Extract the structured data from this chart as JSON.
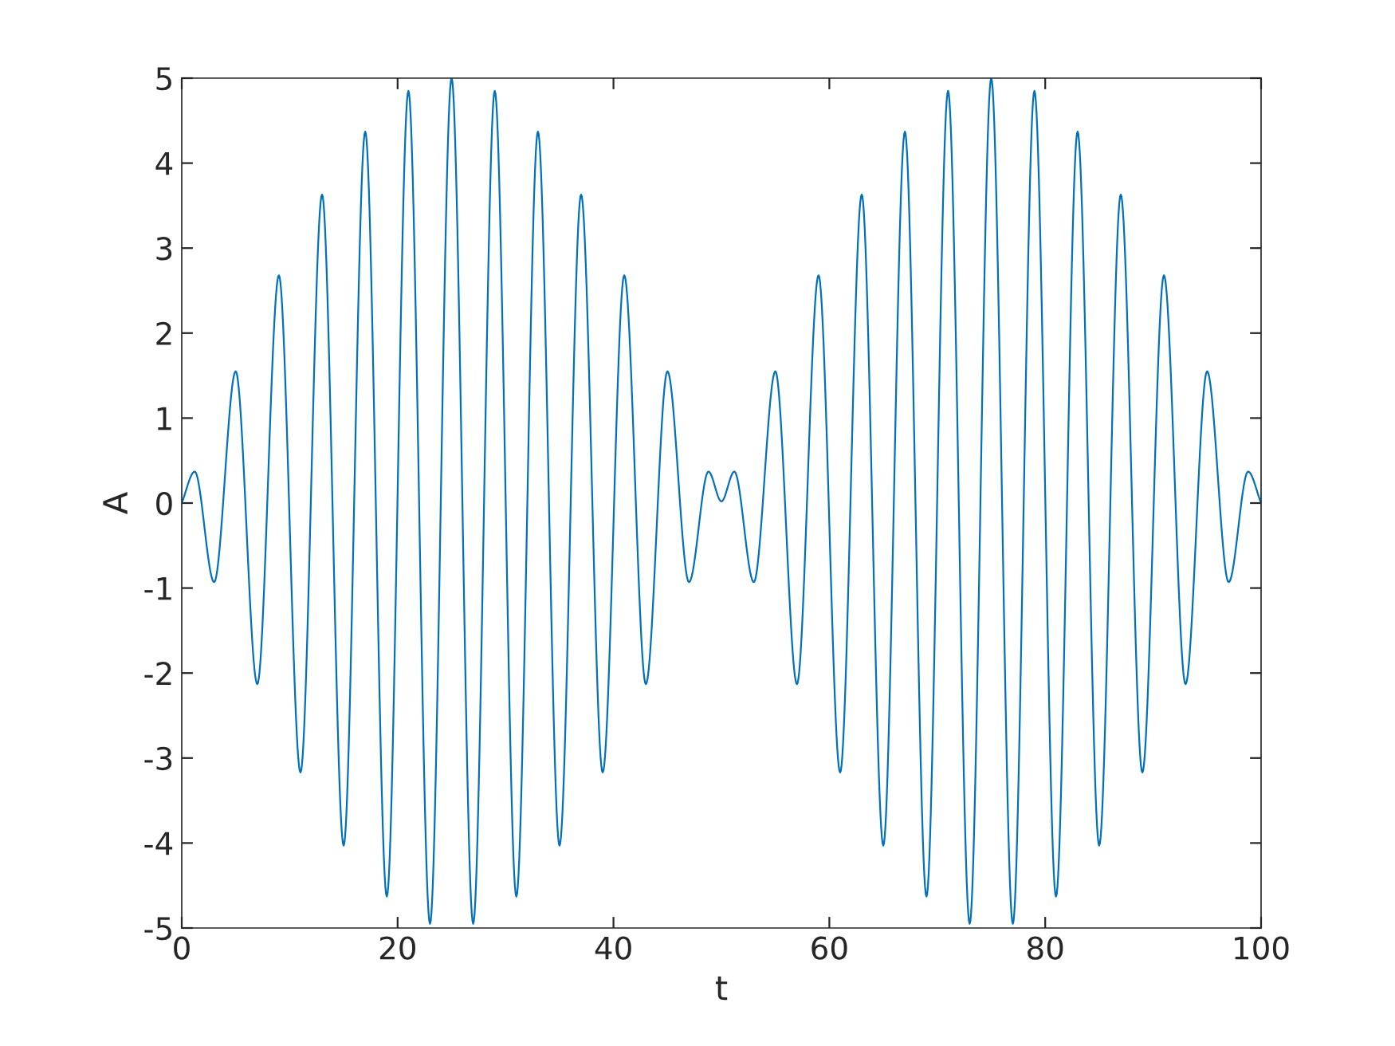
{
  "chart_data": {
    "type": "line",
    "xlabel": "t",
    "ylabel": "A",
    "x": [
      0,
      1.2,
      3,
      5,
      7,
      9,
      11,
      13,
      15,
      17,
      19,
      21,
      23,
      25,
      27,
      29,
      31,
      33,
      35,
      37,
      39,
      41,
      43,
      45,
      47,
      48.8,
      50,
      51.2,
      53,
      55,
      57,
      59,
      61,
      63,
      65,
      67,
      69,
      71,
      73,
      75,
      77,
      79,
      81,
      83,
      85,
      87,
      89,
      91,
      93,
      95,
      97,
      98.8,
      100
    ],
    "series": [
      {
        "color": "#0072bd",
        "values": [
          0,
          0.37,
          -0.93,
          1.55,
          -2.13,
          2.68,
          -3.17,
          3.63,
          -4.03,
          4.37,
          -4.63,
          4.85,
          -4.95,
          5.0,
          -4.95,
          4.85,
          -4.63,
          4.37,
          -4.03,
          3.63,
          -3.17,
          2.68,
          -2.13,
          1.55,
          -0.93,
          0.37,
          0.02,
          0.37,
          -0.93,
          1.55,
          -2.13,
          2.68,
          -3.17,
          3.63,
          -4.03,
          4.37,
          -4.63,
          4.85,
          -4.95,
          5.0,
          -4.95,
          4.85,
          -4.63,
          4.37,
          -4.03,
          3.63,
          -3.17,
          2.68,
          -2.13,
          1.55,
          -0.93,
          0.37,
          0
        ]
      }
    ],
    "xlim": [
      0,
      100
    ],
    "xticks": [
      0,
      20,
      40,
      60,
      80,
      100
    ],
    "ylim": [
      -5,
      5
    ],
    "yticks": [
      {
        "value": -5,
        "label": "-5"
      },
      {
        "value": -4,
        "label": "-4"
      },
      {
        "value": -3,
        "label": "-3"
      },
      {
        "value": -2,
        "label": "-2"
      },
      {
        "value": -1,
        "label": "-1"
      },
      0,
      1,
      2,
      3,
      4,
      5
    ],
    "grid": false,
    "legend": false,
    "marker": "none",
    "line_style": "solid"
  }
}
